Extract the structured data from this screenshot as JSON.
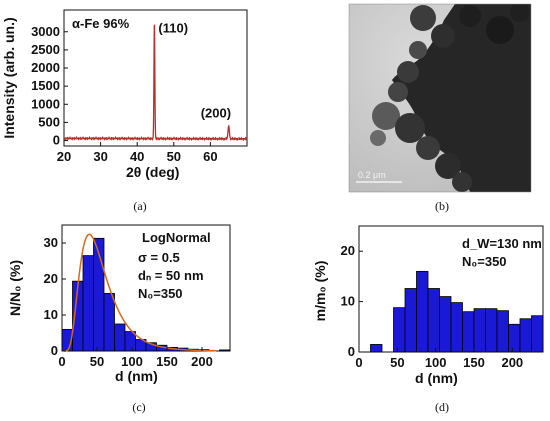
{
  "chart_data": [
    {
      "id": "a",
      "type": "line",
      "caption": "(a)",
      "xlabel": "2θ (deg)",
      "ylabel": "Intensity (arb. un.)",
      "xlim": [
        20,
        70
      ],
      "ylim": [
        -150,
        3600
      ],
      "x_ticks": [
        20,
        30,
        40,
        50,
        60
      ],
      "y_ticks": [
        0,
        500,
        1000,
        1500,
        2000,
        2500,
        3000
      ],
      "color": "#b3322a",
      "baseline": 60,
      "peaks": [
        {
          "x": 44.7,
          "y": 3260,
          "label": "(110)"
        },
        {
          "x": 65.0,
          "y": 420,
          "label": "(200)"
        }
      ],
      "annotations": [
        "α-Fe 96%"
      ]
    },
    {
      "id": "b",
      "type": "image",
      "caption": "(b)",
      "scale_bar": "0.2 μm"
    },
    {
      "id": "c",
      "type": "bar",
      "caption": "(c)",
      "xlabel": "d (nm)",
      "ylabel": "N/N₀ (%)",
      "xlim": [
        0,
        240
      ],
      "ylim": [
        0,
        35
      ],
      "x_ticks": [
        0,
        50,
        100,
        150,
        200
      ],
      "y_ticks": [
        0,
        10,
        20,
        30
      ],
      "bar_width": 15,
      "x": [
        7.5,
        22.5,
        37.5,
        52.5,
        67.5,
        82.5,
        97.5,
        112.5,
        127.5,
        142.5,
        157.5,
        172.5,
        187.5,
        202.5,
        232.5
      ],
      "values": [
        6.0,
        19.4,
        26.5,
        31.3,
        16.0,
        7.5,
        5.4,
        3.2,
        2.3,
        1.6,
        1.0,
        0.8,
        0.5,
        0.4,
        0.3
      ],
      "bar_color": "#1a1ad6",
      "fit": {
        "type": "lognormal",
        "sigma": 0.5,
        "median": 50,
        "peak": 32.4,
        "color": "#d2691e"
      },
      "annotations": [
        "LogNormal",
        "σ = 0.5",
        "dₙ = 50 nm",
        "N₀=350"
      ]
    },
    {
      "id": "d",
      "type": "bar",
      "caption": "(d)",
      "xlabel": "d (nm)",
      "ylabel": "m/m₀ (%)",
      "xlim": [
        0,
        240
      ],
      "ylim": [
        0,
        25
      ],
      "x_ticks": [
        0,
        50,
        100,
        150,
        200
      ],
      "y_ticks": [
        0,
        10,
        20
      ],
      "bar_width": 15,
      "x": [
        22.5,
        37.5,
        52.5,
        67.5,
        82.5,
        97.5,
        112.5,
        127.5,
        142.5,
        157.5,
        172.5,
        187.5,
        202.5,
        217.5,
        232.5
      ],
      "values": [
        1.5,
        0,
        8.8,
        12.6,
        16.0,
        12.6,
        11.0,
        9.8,
        8.0,
        8.6,
        8.6,
        8.2,
        5.5,
        6.6,
        7.2
      ],
      "bar_color": "#1a1ad6",
      "annotations": [
        "d_W=130 nm",
        "N₀=350"
      ]
    }
  ]
}
